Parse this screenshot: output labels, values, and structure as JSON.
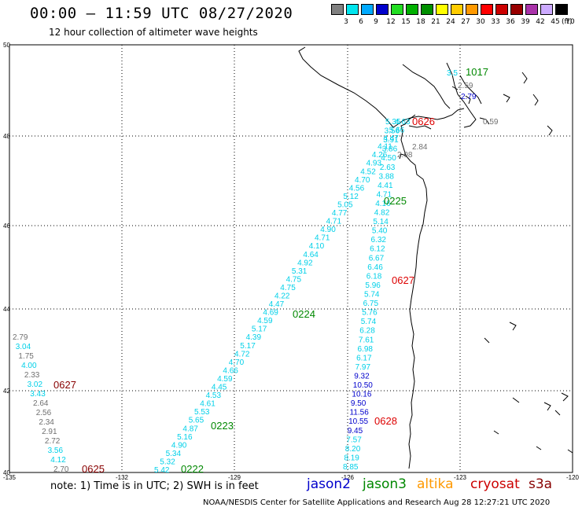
{
  "title": "00:00 – 11:59 UTC 08/27/2020",
  "subtitle": "12 hour collection of altimeter wave heights",
  "legend": {
    "labels": [
      "3",
      "6",
      "9",
      "12",
      "15",
      "18",
      "21",
      "24",
      "27",
      "30",
      "33",
      "36",
      "39",
      "42",
      "45",
      "70"
    ],
    "unit": "(ft)",
    "colors": [
      "#808080",
      "#00e5ee",
      "#00aaff",
      "#0000cc",
      "#22dd22",
      "#00b000",
      "#009000",
      "#ffff00",
      "#ffcc00",
      "#ff9900",
      "#ff0000",
      "#cc0000",
      "#990000",
      "#aa33aa",
      "#ccaaff",
      "#000000"
    ]
  },
  "axes": {
    "lon_labels": [
      "-135",
      "-132",
      "-129",
      "-126",
      "-123",
      "-120"
    ],
    "lat_labels": [
      "50",
      "48",
      "46",
      "44",
      "42",
      "40"
    ]
  },
  "note": "note:  1) Time is in UTC;  2) SWH is in feet",
  "credit": "NOAA/NESDIS Center for Satellite Applications and Research    Aug 28 12:27:21 UTC 2020",
  "satellites": [
    {
      "name": "jason2",
      "color": "#0000cc"
    },
    {
      "name": "jason3",
      "color": "#008800"
    },
    {
      "name": "altika",
      "color": "#ff9900"
    },
    {
      "name": "cryosat",
      "color": "#cc0000"
    },
    {
      "name": "s3a",
      "color": "#880000"
    }
  ],
  "colors": {
    "cyan": "#00d0e8",
    "gray": "#707070",
    "blue": "#0000cc",
    "green": "#008800",
    "red": "#dd0000",
    "darkred": "#880000"
  },
  "tracks": {
    "t0222": {
      "time": "0222",
      "values": [
        "5.42",
        "5.32",
        "5.34",
        "4.90",
        "5.16",
        "4.87",
        "5.65",
        "5.53",
        "4.61",
        "4.53",
        "4.45",
        "4.59",
        "4.66",
        "4.70",
        "4.72",
        "5.17",
        "4.39",
        "5.17",
        "4.59",
        "4.69",
        "4.47",
        "4.22",
        "4.75",
        "4.75",
        "5.31",
        "4.92",
        "4.64",
        "4.10",
        "4.71",
        "4.90",
        "4.71",
        "4.77",
        "5.05",
        "5.12",
        "4.56",
        "4.70",
        "4.52",
        "4.93",
        "4.26",
        "4.11",
        "4.47",
        "5.66",
        "4.63"
      ]
    },
    "t0225": {
      "time": "0225",
      "values": [
        "8.85",
        "8.19",
        "8.20",
        "7.57",
        "9.45",
        "10.55",
        "11.56",
        "9.50",
        "10.16",
        "10.50",
        "9.32",
        "7.97",
        "6.17",
        "6.98",
        "7.61",
        "6.28",
        "5.74",
        "5.76",
        "6.75",
        "5.74",
        "5.96",
        "6.18",
        "6.46",
        "6.67",
        "6.12",
        "6.32",
        "5.40",
        "5.14",
        "4.82",
        "4.16",
        "4.71",
        "4.41",
        "3.88",
        "2.63",
        "4.50",
        "3.86",
        "3.91",
        "3.56",
        "5.35"
      ],
      "colors": [
        "cyan",
        "cyan",
        "cyan",
        "cyan",
        "blue",
        "blue",
        "blue",
        "blue",
        "blue",
        "blue",
        "blue",
        "cyan",
        "cyan",
        "cyan",
        "cyan",
        "cyan",
        "cyan",
        "cyan",
        "cyan",
        "cyan",
        "cyan",
        "cyan",
        "cyan",
        "cyan",
        "cyan",
        "cyan",
        "cyan",
        "cyan",
        "cyan",
        "cyan",
        "cyan",
        "cyan",
        "cyan",
        "cyan",
        "cyan",
        "cyan",
        "cyan",
        "cyan",
        "cyan"
      ]
    },
    "t0625": {
      "time": "0625",
      "values": [
        "2.70",
        "4.12",
        "3.56",
        "2.72",
        "2.91",
        "2.34",
        "2.56",
        "2.64",
        "3.43",
        "3.02",
        "2.33",
        "4.00",
        "1.75",
        "3.04",
        "2.79"
      ],
      "colors": [
        "gray",
        "cyan",
        "cyan",
        "gray",
        "gray",
        "gray",
        "gray",
        "gray",
        "cyan",
        "cyan",
        "gray",
        "cyan",
        "gray",
        "cyan",
        "gray"
      ]
    },
    "t0627a": {
      "time": "0627"
    },
    "t0627b": {
      "time": "0627"
    },
    "t0628": {
      "time": "0628"
    },
    "t0626": {
      "time": "0626"
    },
    "t1017": {
      "time": "1017"
    },
    "t0223": {
      "time": "0223"
    },
    "t0224": {
      "time": "0224"
    },
    "misc_values": [
      "2.84",
      "2.98",
      "0.59",
      "2.59",
      "2.79",
      "3.5"
    ]
  }
}
